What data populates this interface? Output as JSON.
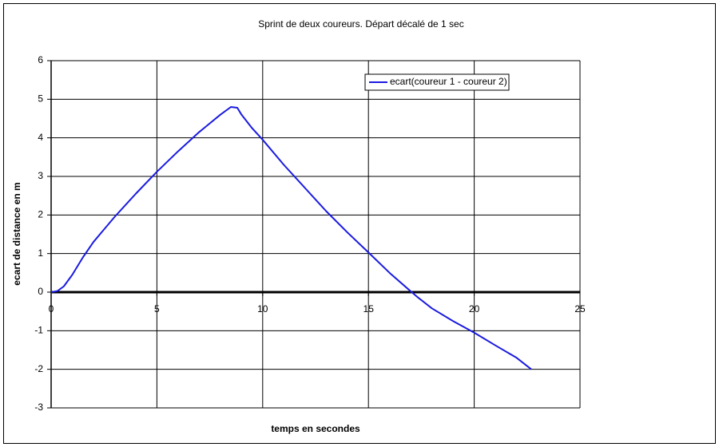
{
  "chart_data": {
    "type": "line",
    "title": "Sprint de deux coureurs. Départ décalé de 1 sec",
    "xlabel": "temps en secondes",
    "ylabel": "ecart de distance en m",
    "x": [
      0,
      0.3,
      0.6,
      1,
      1.5,
      2,
      3,
      4,
      5,
      6,
      7,
      8,
      8.5,
      8.8,
      9,
      9.5,
      10,
      11,
      12,
      13,
      14,
      15,
      16,
      17,
      17.3,
      18,
      19,
      20,
      21,
      22,
      22.7
    ],
    "series": [
      {
        "name": "ecart(coureur 1 - coureur 2)",
        "color": "#1a1ae0",
        "values": [
          0,
          0.03,
          0.15,
          0.45,
          0.9,
          1.3,
          1.95,
          2.55,
          3.12,
          3.65,
          4.15,
          4.6,
          4.8,
          4.78,
          4.6,
          4.25,
          3.95,
          3.3,
          2.7,
          2.1,
          1.55,
          1.03,
          0.5,
          0.02,
          -0.12,
          -0.42,
          -0.75,
          -1.05,
          -1.38,
          -1.7,
          -2.0
        ]
      }
    ],
    "xlim": [
      0,
      25
    ],
    "xticks": [
      0,
      5,
      10,
      15,
      20,
      25
    ],
    "ylim": [
      -3,
      6
    ],
    "yticks": [
      -3,
      -2,
      -1,
      0,
      1,
      2,
      3,
      4,
      5,
      6
    ],
    "grid": true,
    "legend": "top-right"
  }
}
